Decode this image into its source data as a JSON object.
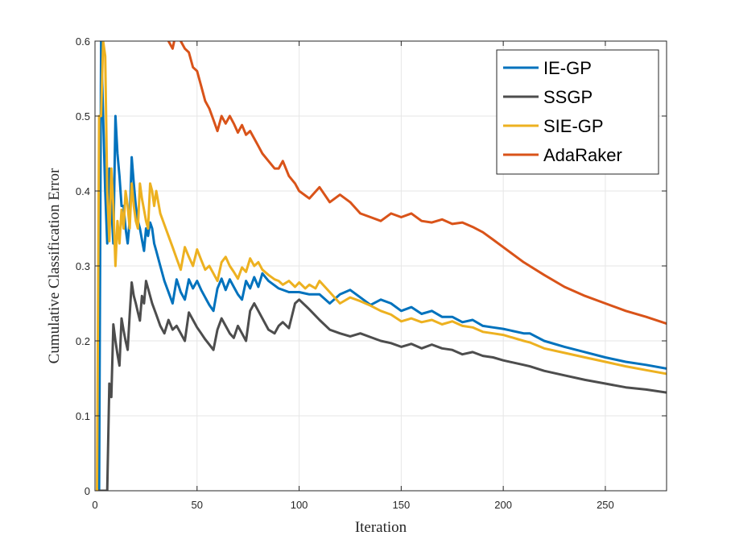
{
  "chart_data": {
    "type": "line",
    "title": "",
    "xlabel": "Iteration",
    "ylabel": "Cumulative Classification Error",
    "xlim": [
      0,
      280
    ],
    "ylim": [
      0,
      0.6
    ],
    "xticks": [
      0,
      50,
      100,
      150,
      200,
      250
    ],
    "yticks": [
      0,
      0.1,
      0.2,
      0.3,
      0.4,
      0.5,
      0.6
    ],
    "xtick_labels": [
      "0",
      "50",
      "100",
      "150",
      "200",
      "250"
    ],
    "ytick_labels": [
      "0",
      "0.1",
      "0.2",
      "0.3",
      "0.4",
      "0.5",
      "0.6"
    ],
    "grid": true,
    "legend_position": "top-right",
    "series": [
      {
        "name": "IE-GP",
        "color": "#0072BD",
        "x": [
          1,
          2,
          3,
          4,
          5,
          6,
          7,
          8,
          9,
          10,
          11,
          12,
          13,
          14,
          15,
          16,
          17,
          18,
          19,
          20,
          21,
          22,
          23,
          24,
          25,
          26,
          27,
          28,
          29,
          30,
          32,
          34,
          36,
          38,
          40,
          42,
          44,
          46,
          48,
          50,
          52,
          54,
          56,
          58,
          60,
          62,
          64,
          66,
          68,
          70,
          72,
          74,
          76,
          78,
          80,
          82,
          85,
          90,
          95,
          100,
          105,
          110,
          115,
          120,
          125,
          130,
          135,
          140,
          145,
          150,
          155,
          160,
          165,
          170,
          175,
          180,
          185,
          190,
          195,
          200,
          210,
          213,
          220,
          230,
          240,
          250,
          260,
          270,
          280
        ],
        "values": [
          0,
          0,
          0.6,
          0.5,
          0.4,
          0.33,
          0.43,
          0.38,
          0.33,
          0.5,
          0.45,
          0.42,
          0.38,
          0.38,
          0.35,
          0.33,
          0.36,
          0.445,
          0.41,
          0.38,
          0.36,
          0.35,
          0.335,
          0.32,
          0.35,
          0.34,
          0.358,
          0.35,
          0.33,
          0.32,
          0.3,
          0.28,
          0.265,
          0.25,
          0.282,
          0.265,
          0.255,
          0.282,
          0.27,
          0.28,
          0.268,
          0.258,
          0.248,
          0.24,
          0.27,
          0.283,
          0.268,
          0.282,
          0.272,
          0.262,
          0.255,
          0.28,
          0.27,
          0.285,
          0.272,
          0.29,
          0.28,
          0.27,
          0.265,
          0.265,
          0.262,
          0.262,
          0.25,
          0.262,
          0.268,
          0.258,
          0.248,
          0.255,
          0.25,
          0.24,
          0.245,
          0.236,
          0.24,
          0.232,
          0.232,
          0.225,
          0.228,
          0.22,
          0.218,
          0.216,
          0.21,
          0.21,
          0.2,
          0.192,
          0.185,
          0.178,
          0.172,
          0.168,
          0.163
        ]
      },
      {
        "name": "SSGP",
        "color": "#4D4D4D",
        "x": [
          1,
          2,
          3,
          4,
          5,
          6,
          7,
          8,
          9,
          10,
          11,
          12,
          13,
          14,
          15,
          16,
          17,
          18,
          19,
          20,
          21,
          22,
          23,
          24,
          25,
          26,
          28,
          30,
          32,
          34,
          36,
          38,
          40,
          42,
          44,
          46,
          48,
          50,
          52,
          54,
          56,
          58,
          60,
          62,
          64,
          66,
          68,
          70,
          72,
          74,
          76,
          78,
          80,
          82,
          85,
          88,
          90,
          92,
          95,
          98,
          100,
          105,
          110,
          115,
          120,
          125,
          130,
          135,
          140,
          145,
          150,
          155,
          160,
          165,
          170,
          175,
          180,
          185,
          190,
          195,
          200,
          210,
          213,
          220,
          230,
          240,
          250,
          260,
          270,
          280
        ],
        "values": [
          0,
          0,
          0,
          0,
          0,
          0,
          0.143,
          0.125,
          0.222,
          0.2,
          0.182,
          0.167,
          0.23,
          0.214,
          0.2,
          0.188,
          0.235,
          0.278,
          0.26,
          0.25,
          0.238,
          0.227,
          0.26,
          0.25,
          0.28,
          0.27,
          0.25,
          0.235,
          0.22,
          0.21,
          0.228,
          0.215,
          0.22,
          0.21,
          0.2,
          0.238,
          0.228,
          0.218,
          0.21,
          0.202,
          0.195,
          0.188,
          0.215,
          0.23,
          0.22,
          0.21,
          0.204,
          0.22,
          0.21,
          0.2,
          0.24,
          0.25,
          0.24,
          0.23,
          0.215,
          0.21,
          0.22,
          0.225,
          0.217,
          0.25,
          0.255,
          0.242,
          0.228,
          0.215,
          0.21,
          0.206,
          0.21,
          0.205,
          0.2,
          0.197,
          0.192,
          0.196,
          0.19,
          0.195,
          0.19,
          0.188,
          0.182,
          0.185,
          0.18,
          0.178,
          0.174,
          0.168,
          0.166,
          0.16,
          0.154,
          0.148,
          0.143,
          0.138,
          0.135,
          0.131
        ]
      },
      {
        "name": "SIE-GP",
        "color": "#EDB120",
        "x": [
          1,
          2,
          3,
          4,
          5,
          6,
          7,
          8,
          9,
          10,
          11,
          12,
          13,
          14,
          15,
          16,
          17,
          18,
          19,
          20,
          21,
          22,
          23,
          24,
          25,
          26,
          27,
          28,
          29,
          30,
          32,
          34,
          36,
          38,
          40,
          42,
          44,
          46,
          48,
          50,
          52,
          54,
          56,
          58,
          60,
          62,
          64,
          66,
          68,
          70,
          72,
          74,
          76,
          78,
          80,
          82,
          85,
          88,
          90,
          92,
          95,
          98,
          100,
          103,
          105,
          108,
          110,
          115,
          120,
          125,
          130,
          135,
          140,
          145,
          150,
          155,
          160,
          165,
          170,
          175,
          180,
          185,
          190,
          195,
          200,
          210,
          213,
          220,
          230,
          240,
          250,
          260,
          270,
          280
        ],
        "values": [
          0,
          0.5,
          0.5,
          0.6,
          0.58,
          0.4,
          0.333,
          0.43,
          0.38,
          0.3,
          0.36,
          0.33,
          0.375,
          0.35,
          0.4,
          0.38,
          0.35,
          0.41,
          0.38,
          0.36,
          0.35,
          0.41,
          0.39,
          0.375,
          0.36,
          0.35,
          0.41,
          0.4,
          0.38,
          0.4,
          0.37,
          0.355,
          0.34,
          0.325,
          0.31,
          0.295,
          0.325,
          0.312,
          0.3,
          0.322,
          0.308,
          0.295,
          0.3,
          0.29,
          0.28,
          0.305,
          0.312,
          0.3,
          0.292,
          0.283,
          0.298,
          0.292,
          0.31,
          0.3,
          0.305,
          0.295,
          0.288,
          0.282,
          0.28,
          0.275,
          0.28,
          0.272,
          0.278,
          0.27,
          0.275,
          0.27,
          0.28,
          0.265,
          0.25,
          0.258,
          0.253,
          0.247,
          0.24,
          0.235,
          0.226,
          0.23,
          0.225,
          0.228,
          0.222,
          0.226,
          0.22,
          0.218,
          0.212,
          0.21,
          0.208,
          0.2,
          0.198,
          0.19,
          0.184,
          0.178,
          0.172,
          0.166,
          0.161,
          0.156
        ]
      },
      {
        "name": "AdaRaker",
        "color": "#D95319",
        "x": [
          36,
          38,
          40,
          42,
          44,
          46,
          48,
          50,
          52,
          54,
          56,
          58,
          60,
          62,
          64,
          66,
          68,
          70,
          72,
          74,
          76,
          78,
          80,
          82,
          85,
          88,
          90,
          92,
          95,
          98,
          100,
          105,
          110,
          115,
          120,
          125,
          130,
          135,
          140,
          145,
          150,
          155,
          160,
          165,
          170,
          175,
          180,
          185,
          190,
          195,
          200,
          210,
          220,
          230,
          240,
          250,
          260,
          270,
          280
        ],
        "values": [
          0.6,
          0.59,
          0.615,
          0.6,
          0.59,
          0.585,
          0.565,
          0.56,
          0.54,
          0.52,
          0.51,
          0.495,
          0.48,
          0.5,
          0.49,
          0.5,
          0.49,
          0.478,
          0.488,
          0.475,
          0.48,
          0.47,
          0.46,
          0.45,
          0.44,
          0.43,
          0.43,
          0.44,
          0.42,
          0.41,
          0.4,
          0.39,
          0.405,
          0.385,
          0.395,
          0.385,
          0.37,
          0.365,
          0.36,
          0.37,
          0.365,
          0.37,
          0.36,
          0.358,
          0.362,
          0.356,
          0.358,
          0.352,
          0.345,
          0.335,
          0.325,
          0.305,
          0.288,
          0.272,
          0.26,
          0.25,
          0.24,
          0.232,
          0.223
        ]
      }
    ]
  }
}
